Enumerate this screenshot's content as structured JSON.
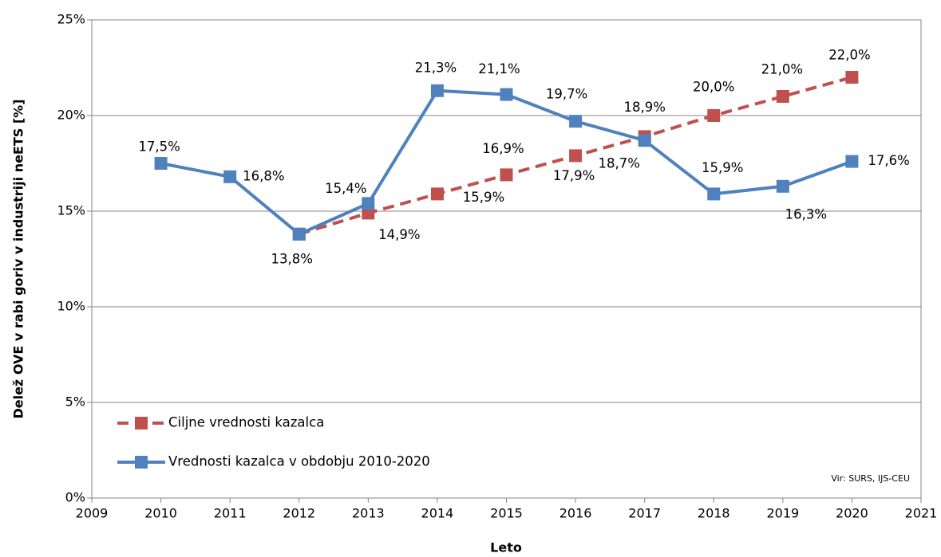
{
  "chart_data": {
    "type": "line",
    "ylabel": "Delež OVE v rabi goriv v industriji neETS [%]",
    "xlabel": "Leto",
    "source": "Vir: SURS, IJS-CEU",
    "xlim": [
      2009,
      2021
    ],
    "xticks": [
      2009,
      2010,
      2011,
      2012,
      2013,
      2014,
      2015,
      2016,
      2017,
      2018,
      2019,
      2020,
      2021
    ],
    "ylim": [
      0,
      25
    ],
    "yticks": [
      {
        "value": 0,
        "label": "0%"
      },
      {
        "value": 5,
        "label": "5%"
      },
      {
        "value": 10,
        "label": "10%"
      },
      {
        "value": 15,
        "label": "15%"
      },
      {
        "value": 20,
        "label": "20%"
      },
      {
        "value": 25,
        "label": "25%"
      }
    ],
    "grid": true,
    "legend": "lower left",
    "series": [
      {
        "name": "Ciljne vrednosti kazalca",
        "color": "#c0504d",
        "dashed": true,
        "x": [
          2012,
          2013,
          2014,
          2015,
          2016,
          2017,
          2018,
          2019,
          2020
        ],
        "values": [
          13.8,
          14.9,
          15.9,
          16.9,
          17.9,
          18.9,
          20.0,
          21.0,
          22.0
        ],
        "value_labels": [
          null,
          "14,9%",
          "15,9%",
          "16,9%",
          "17,9%",
          "18,9%",
          "20,0%",
          "21,0%",
          "22,0%"
        ]
      },
      {
        "name": "Vrednosti kazalca v obdobju 2010-2020",
        "color": "#4f81bd",
        "dashed": false,
        "x": [
          2010,
          2011,
          2012,
          2013,
          2014,
          2015,
          2016,
          2017,
          2018,
          2019,
          2020
        ],
        "values": [
          17.5,
          16.8,
          13.8,
          15.4,
          21.3,
          21.1,
          19.7,
          18.7,
          15.9,
          16.3,
          17.6
        ],
        "value_labels": [
          "17,5%",
          "16,8%",
          "13,8%",
          "15,4%",
          "21,3%",
          "21,1%",
          "19,7%",
          "18,7%",
          "15,9%",
          "16,3%",
          "17,6%"
        ]
      }
    ]
  }
}
